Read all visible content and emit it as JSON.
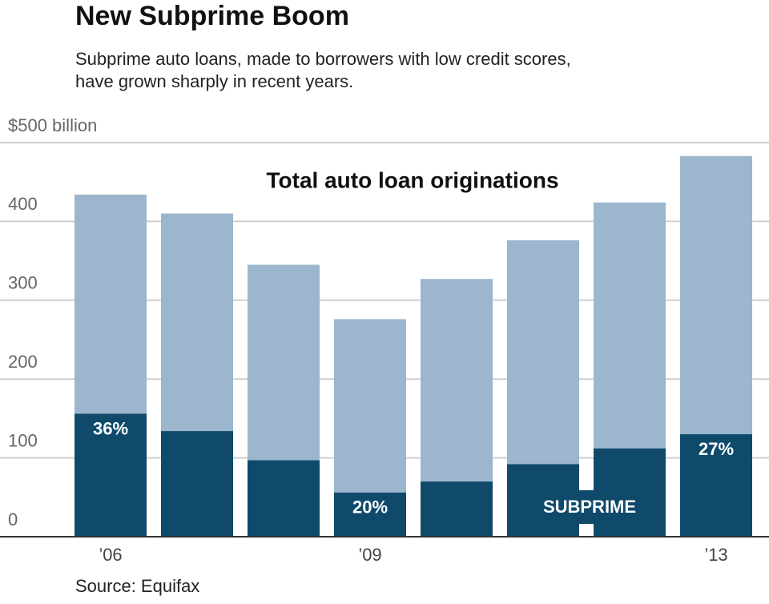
{
  "chart_data": {
    "type": "bar",
    "title": "New Subprime Boom",
    "subtitle": [
      "Subprime auto loans, made to borrowers with low credit scores,",
      "have grown sharply in recent years."
    ],
    "source": "Source: Equifax",
    "categories": [
      "’06",
      null,
      null,
      "’09",
      null,
      null,
      null,
      "’13"
    ],
    "series": [
      {
        "name": "Total auto loan originations",
        "color": "#9bb6cd",
        "values": [
          434,
          410,
          345,
          276,
          327,
          376,
          424,
          483
        ]
      },
      {
        "name": "SUBPRIME",
        "color": "#0f4a6b",
        "values": [
          156,
          134,
          97,
          56,
          70,
          92,
          112,
          130
        ],
        "share_labels": [
          "36%",
          null,
          null,
          "20%",
          null,
          null,
          null,
          "27%"
        ]
      }
    ],
    "ylim": [
      0,
      500
    ],
    "yticks": [
      0,
      100,
      200,
      300,
      400,
      {
        "value": 500,
        "label": "$500 billion"
      }
    ],
    "grid": true
  }
}
